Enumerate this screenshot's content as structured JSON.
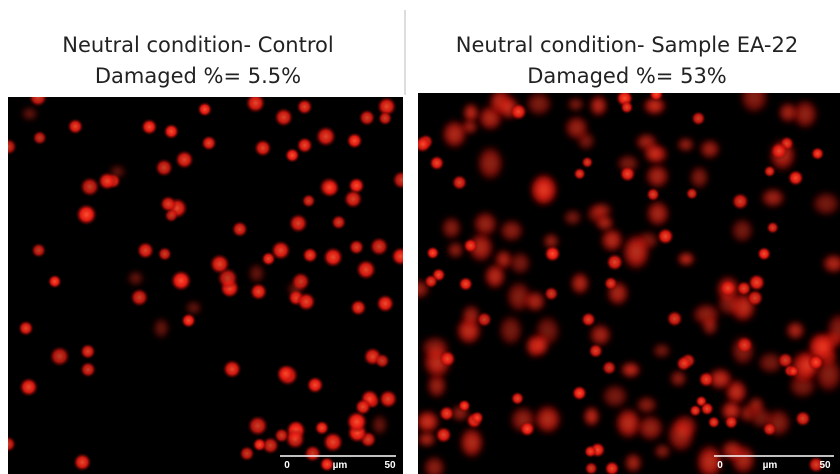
{
  "panels": [
    {
      "title": "Neutral condition- Control",
      "subtitle": "Damaged %= 5.5%",
      "scale": {
        "start": "0",
        "unit": "µm",
        "end": "50"
      }
    },
    {
      "title": "Neutral condition- Sample EA-22",
      "subtitle": "Damaged %= 53%",
      "scale": {
        "start": "0",
        "unit": "µm",
        "end": "50"
      }
    }
  ]
}
